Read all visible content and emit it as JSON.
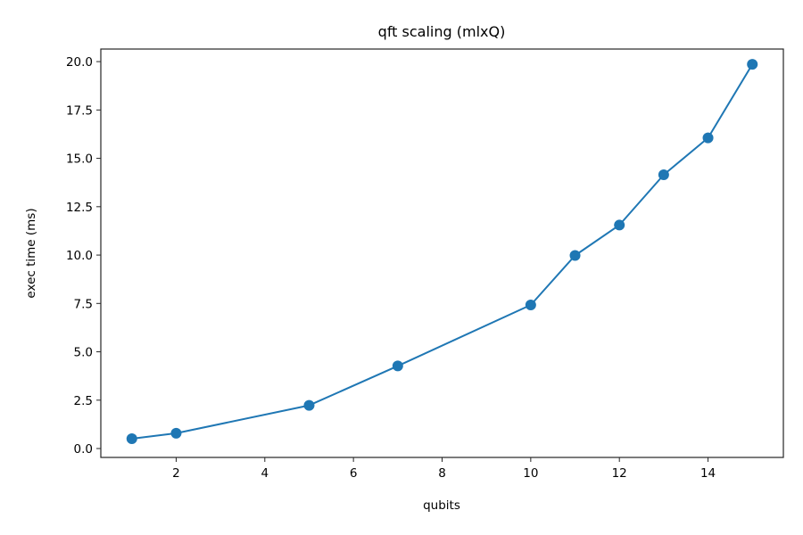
{
  "chart_data": {
    "type": "line",
    "title": "qft scaling (mlxQ)",
    "xlabel": "qubits",
    "ylabel": "exec time (ms)",
    "x": [
      1,
      2,
      5,
      7,
      10,
      11,
      12,
      13,
      14,
      15
    ],
    "series": [
      {
        "name": "mlxQ",
        "values": [
          0.51,
          0.79,
          2.23,
          4.27,
          7.42,
          9.98,
          11.55,
          14.15,
          16.06,
          19.86
        ],
        "color": "#1f77b4",
        "marker": "circle"
      }
    ],
    "xlim": [
      0.3,
      15.7
    ],
    "ylim": [
      -0.46,
      20.65
    ],
    "xticks": [
      2,
      4,
      6,
      8,
      10,
      12,
      14
    ],
    "xtick_labels": [
      "2",
      "4",
      "6",
      "8",
      "10",
      "12",
      "14"
    ],
    "yticks": [
      0.0,
      2.5,
      5.0,
      7.5,
      10.0,
      12.5,
      15.0,
      17.5,
      20.0
    ],
    "ytick_labels": [
      "0.0",
      "2.5",
      "5.0",
      "7.5",
      "10.0",
      "12.5",
      "15.0",
      "17.5",
      "20.0"
    ],
    "grid": false,
    "legend": null
  }
}
